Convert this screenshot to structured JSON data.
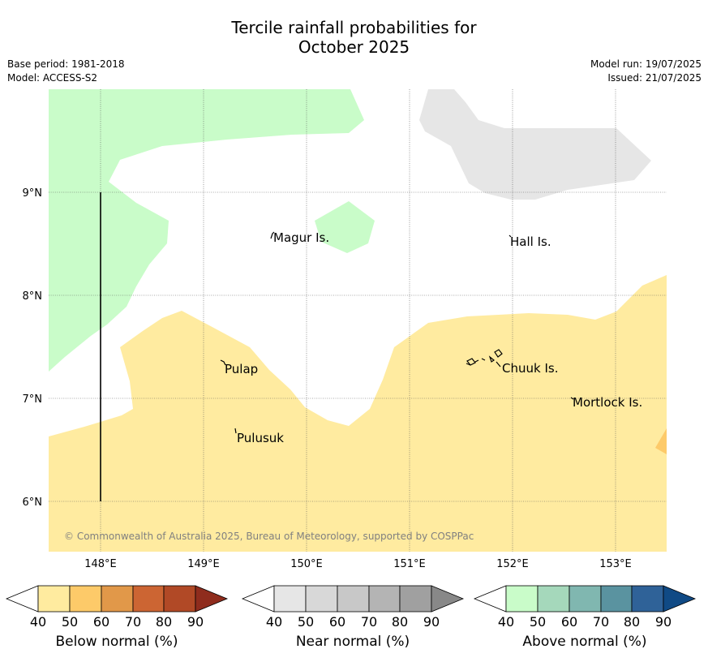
{
  "title": {
    "line1": "Tercile rainfall probabilities for",
    "line2": "October 2025"
  },
  "info_left": {
    "base_period": "Base period: 1981-2018",
    "model": "Model: ACCESS-S2"
  },
  "info_right": {
    "model_run": "Model run: 19/07/2025",
    "issued": "Issued: 21/07/2025"
  },
  "map": {
    "x_ticks": [
      "148°E",
      "149°E",
      "150°E",
      "151°E",
      "152°E",
      "153°E"
    ],
    "y_ticks": [
      "9°N",
      "8°N",
      "7°N",
      "6°N"
    ],
    "places": [
      "Magur Is.",
      "Hall Is.",
      "Pulap",
      "Chuuk Is.",
      "Mortlock Is.",
      "Pulusuk"
    ],
    "copyright": "© Commonwealth of Australia 2025, Bureau of Meteorology, supported by COSPPac",
    "colors": {
      "above_normal_40": "#c9fcc9",
      "near_normal_40": "#e6e6e6",
      "below_normal_40": "#ffeba0",
      "below_normal_50": "#fdca6a"
    }
  },
  "colorbars": [
    {
      "label": "Below normal (%)",
      "ticks": [
        "40",
        "50",
        "60",
        "70",
        "80",
        "90"
      ],
      "colors": [
        "#ffeb9f",
        "#fdca69",
        "#e19849",
        "#cc6533",
        "#b14926",
        "#8f2c1d"
      ]
    },
    {
      "label": "Near normal (%)",
      "ticks": [
        "40",
        "50",
        "60",
        "70",
        "80",
        "90"
      ],
      "colors": [
        "#e6e6e6",
        "#d8d8d8",
        "#c8c8c8",
        "#b4b4b4",
        "#a0a0a0",
        "#888888"
      ]
    },
    {
      "label": "Above normal (%)",
      "ticks": [
        "40",
        "50",
        "60",
        "70",
        "80",
        "90"
      ],
      "colors": [
        "#c9fcc9",
        "#a5d8bb",
        "#80b7b0",
        "#5a93a0",
        "#2f6298",
        "#104a85"
      ]
    }
  ]
}
